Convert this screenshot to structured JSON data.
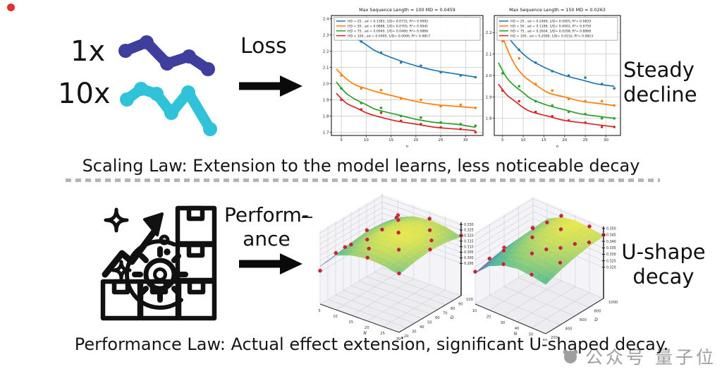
{
  "top": {
    "multiplier_small": "1x",
    "multiplier_large": "10x",
    "arrow_label": "Loss",
    "right_note": "Steady\ndecline",
    "caption": "Scaling Law: Extension to the model learns, less noticeable decay"
  },
  "bottom": {
    "arrow_label": "Perform-\nance",
    "right_note": "U-shape\ndecay",
    "caption": "Performance Law: Actual effect extension, significant U-shaped decay."
  },
  "watermark": {
    "text": "公众号  量子位"
  },
  "colors": {
    "squiggle_1x": "#3f3e9c",
    "squiggle_10x": "#2fc2d8",
    "scatter_red": "#cf2233",
    "series_blue": "#1f77b4",
    "series_orange": "#ff7f0e",
    "series_green": "#2ca02c",
    "series_red": "#d62728"
  },
  "chart_data": [
    {
      "type": "line",
      "title": "Max Sequence Length = 100 MD = 0.0459",
      "xlabel": "n",
      "xlim": [
        3,
        33.5
      ],
      "ylim": [
        1.68,
        2.42
      ],
      "xticks": [
        5,
        10,
        15,
        20,
        25,
        30
      ],
      "yticks": [
        "1.7",
        "1.8",
        "1.9",
        "2.0",
        "2.1",
        "2.2",
        "2.3",
        "2.4"
      ],
      "grid": true,
      "legend_position": "upper full-width inside",
      "series": [
        {
          "label": "HD = 25 , ad = 0.1383, 1/D= 0.0731, R²= 0.9992",
          "color": "#1f77b4",
          "curve": [
            [
              4,
              2.4
            ],
            [
              6,
              2.33
            ],
            [
              8,
              2.28
            ],
            [
              10,
              2.24
            ],
            [
              12,
              2.2
            ],
            [
              16,
              2.15
            ],
            [
              20,
              2.11
            ],
            [
              24,
              2.08
            ],
            [
              28,
              2.06
            ],
            [
              32,
              2.04
            ]
          ],
          "dots": [
            [
              5,
              2.34
            ],
            [
              9,
              2.26
            ],
            [
              13,
              2.19
            ],
            [
              17,
              2.13
            ],
            [
              21,
              2.11
            ],
            [
              25,
              2.07
            ],
            [
              29,
              2.05
            ],
            [
              32,
              2.04
            ]
          ]
        },
        {
          "label": "HD = 50 , ad = 0.0888, 1/D= 0.0705, R²= 0.9941",
          "color": "#ff7f0e",
          "curve": [
            [
              4,
              2.09
            ],
            [
              6,
              2.03
            ],
            [
              8,
              1.99
            ],
            [
              10,
              1.97
            ],
            [
              12,
              1.95
            ],
            [
              16,
              1.92
            ],
            [
              20,
              1.89
            ],
            [
              24,
              1.87
            ],
            [
              28,
              1.86
            ],
            [
              32,
              1.85
            ]
          ],
          "dots": [
            [
              5,
              2.05
            ],
            [
              9,
              1.97
            ],
            [
              13,
              1.96
            ],
            [
              17,
              1.91
            ],
            [
              21,
              1.9
            ],
            [
              25,
              1.86
            ],
            [
              29,
              1.87
            ],
            [
              32,
              1.85
            ]
          ]
        },
        {
          "label": "HD = 75 , ad = 0.0949, 1/D= 0.0480, R²= 0.9866",
          "color": "#2ca02c",
          "curve": [
            [
              4,
              2.01
            ],
            [
              6,
              1.94
            ],
            [
              8,
              1.9
            ],
            [
              10,
              1.87
            ],
            [
              12,
              1.84
            ],
            [
              16,
              1.81
            ],
            [
              20,
              1.78
            ],
            [
              24,
              1.76
            ],
            [
              28,
              1.75
            ],
            [
              32,
              1.73
            ]
          ],
          "dots": [
            [
              5,
              1.97
            ],
            [
              9,
              1.88
            ],
            [
              13,
              1.85
            ],
            [
              17,
              1.8
            ],
            [
              21,
              1.79
            ],
            [
              25,
              1.76
            ],
            [
              29,
              1.75
            ],
            [
              32,
              1.74
            ]
          ]
        },
        {
          "label": "HD = 100 , ad = 0.0495, 1/D= 0.0000, R²= 0.9817",
          "color": "#d62728",
          "curve": [
            [
              4,
              1.94
            ],
            [
              6,
              1.88
            ],
            [
              8,
              1.85
            ],
            [
              10,
              1.82
            ],
            [
              12,
              1.8
            ],
            [
              16,
              1.77
            ],
            [
              20,
              1.75
            ],
            [
              24,
              1.73
            ],
            [
              28,
              1.72
            ],
            [
              32,
              1.71
            ]
          ],
          "dots": [
            [
              5,
              1.9
            ],
            [
              9,
              1.84
            ],
            [
              13,
              1.82
            ],
            [
              17,
              1.77
            ],
            [
              21,
              1.75
            ],
            [
              25,
              1.73
            ],
            [
              29,
              1.72
            ],
            [
              32,
              1.7
            ]
          ]
        }
      ]
    },
    {
      "type": "line",
      "title": "Max Sequence Length = 150 MD = 0.0263",
      "xlabel": "n",
      "xlim": [
        3,
        33.5
      ],
      "ylim": [
        1.72,
        2.28
      ],
      "xticks": [
        5,
        10,
        15,
        20,
        25,
        30
      ],
      "yticks": [
        "1.8",
        "1.9",
        "2.0",
        "2.1",
        "2.2"
      ],
      "grid": true,
      "legend_position": "upper full-width inside",
      "series": [
        {
          "label": "HD = 25 , ad = 0.2469, 1/D= 0.0005, R²= 0.9829",
          "color": "#1f77b4",
          "curve": [
            [
              4,
              2.26
            ],
            [
              6,
              2.19
            ],
            [
              8,
              2.14
            ],
            [
              10,
              2.1
            ],
            [
              12,
              2.07
            ],
            [
              16,
              2.03
            ],
            [
              20,
              2.0
            ],
            [
              24,
              1.98
            ],
            [
              28,
              1.96
            ],
            [
              32,
              1.95
            ]
          ],
          "dots": [
            [
              5,
              2.21
            ],
            [
              9,
              2.12
            ],
            [
              13,
              2.06
            ],
            [
              17,
              2.02
            ],
            [
              21,
              2.0
            ],
            [
              25,
              1.99
            ],
            [
              29,
              1.96
            ],
            [
              32,
              1.94
            ]
          ]
        },
        {
          "label": "HD = 50 , ad = 0.1189, 1/D= 0.0002, R²= 0.9759",
          "color": "#ff7f0e",
          "curve": [
            [
              4,
              2.24
            ],
            [
              6,
              2.13
            ],
            [
              8,
              2.05
            ],
            [
              10,
              2.0
            ],
            [
              12,
              1.97
            ],
            [
              16,
              1.92
            ],
            [
              20,
              1.9
            ],
            [
              24,
              1.88
            ],
            [
              28,
              1.87
            ],
            [
              32,
              1.86
            ]
          ],
          "dots": [
            [
              5,
              2.16
            ],
            [
              9,
              2.08
            ],
            [
              13,
              1.96
            ],
            [
              17,
              1.93
            ],
            [
              21,
              1.89
            ],
            [
              25,
              1.88
            ],
            [
              29,
              1.88
            ],
            [
              32,
              1.86
            ]
          ]
        },
        {
          "label": "HD = 75 , ad = 0.2604, 1/D= 0.0298, R²= 0.8868",
          "color": "#2ca02c",
          "curve": [
            [
              4,
              2.06
            ],
            [
              6,
              1.99
            ],
            [
              8,
              1.95
            ],
            [
              10,
              1.92
            ],
            [
              12,
              1.89
            ],
            [
              16,
              1.86
            ],
            [
              20,
              1.84
            ],
            [
              24,
              1.82
            ],
            [
              28,
              1.81
            ],
            [
              32,
              1.8
            ]
          ],
          "dots": [
            [
              5,
              2.01
            ],
            [
              9,
              1.95
            ],
            [
              13,
              1.88
            ],
            [
              17,
              1.86
            ],
            [
              21,
              1.83
            ],
            [
              25,
              1.82
            ],
            [
              29,
              1.8
            ],
            [
              32,
              1.8
            ]
          ]
        },
        {
          "label": "HD = 100 , ad = 0.2006, 1/D= 0.0152, R²= 0.9823",
          "color": "#d62728",
          "curve": [
            [
              4,
              1.96
            ],
            [
              6,
              1.91
            ],
            [
              8,
              1.88
            ],
            [
              10,
              1.85
            ],
            [
              12,
              1.83
            ],
            [
              16,
              1.81
            ],
            [
              20,
              1.79
            ],
            [
              24,
              1.78
            ],
            [
              28,
              1.77
            ],
            [
              32,
              1.76
            ]
          ],
          "dots": [
            [
              5,
              1.93
            ],
            [
              9,
              1.88
            ],
            [
              13,
              1.83
            ],
            [
              17,
              1.81
            ],
            [
              21,
              1.79
            ],
            [
              25,
              1.78
            ],
            [
              29,
              1.76
            ],
            [
              32,
              1.76
            ]
          ]
        }
      ]
    },
    {
      "type": "surface3d",
      "xlabel": "N",
      "ylabel": "D",
      "xticks": [
        5,
        10,
        15,
        20,
        25,
        30
      ],
      "yticks": [
        20,
        30,
        40,
        50,
        60,
        70,
        80,
        90,
        100
      ],
      "zticks": [
        "0.295",
        "0.300",
        "0.305",
        "0.310",
        "0.315",
        "0.320",
        "0.325",
        "0.330"
      ],
      "xrange": [
        5,
        30
      ],
      "yrange": [
        20,
        100
      ],
      "zrange": [
        0.266,
        0.332
      ],
      "grid_x": [
        5,
        10,
        15,
        20,
        25,
        30
      ],
      "grid_y": [
        20,
        40,
        60,
        80,
        100
      ],
      "grid_z": [
        [
          0.3,
          0.315,
          0.32,
          0.322,
          0.321,
          0.318
        ],
        [
          0.302,
          0.318,
          0.324,
          0.326,
          0.325,
          0.321
        ],
        [
          0.303,
          0.32,
          0.326,
          0.328,
          0.327,
          0.323
        ],
        [
          0.302,
          0.319,
          0.325,
          0.327,
          0.326,
          0.322
        ],
        [
          0.3,
          0.316,
          0.322,
          0.324,
          0.323,
          0.319
        ]
      ],
      "scatter_color": "#cf2233",
      "scatter": [
        [
          5,
          20,
          0.296
        ],
        [
          5,
          60,
          0.303
        ],
        [
          5,
          100,
          0.3
        ],
        [
          8,
          40,
          0.312
        ],
        [
          10,
          20,
          0.317
        ],
        [
          10,
          60,
          0.321
        ],
        [
          10,
          100,
          0.318
        ],
        [
          12,
          90,
          0.322
        ],
        [
          15,
          40,
          0.326
        ],
        [
          15,
          80,
          0.327
        ],
        [
          18,
          30,
          0.325
        ],
        [
          20,
          20,
          0.323
        ],
        [
          20,
          60,
          0.329
        ],
        [
          20,
          100,
          0.325
        ],
        [
          25,
          40,
          0.327
        ],
        [
          25,
          80,
          0.328
        ],
        [
          28,
          70,
          0.326
        ],
        [
          30,
          20,
          0.319
        ],
        [
          30,
          60,
          0.324
        ],
        [
          30,
          100,
          0.32
        ]
      ]
    },
    {
      "type": "surface3d",
      "xlabel": "N",
      "ylabel": "D",
      "xticks": [
        10,
        20,
        30,
        40,
        50,
        60
      ],
      "yticks": [
        200,
        400,
        600,
        800,
        1000
      ],
      "zticks": [
        "0.320",
        "0.325",
        "0.330",
        "0.335",
        "0.340",
        "0.345",
        "0.350"
      ],
      "xrange": [
        10,
        60
      ],
      "yrange": [
        200,
        1000
      ],
      "zrange": [
        0.296,
        0.3515
      ],
      "grid_x": [
        10,
        20,
        30,
        40,
        50,
        60
      ],
      "grid_y": [
        200,
        400,
        600,
        800,
        1000
      ],
      "grid_z": [
        [
          0.32,
          0.33,
          0.335,
          0.337,
          0.336,
          0.334
        ],
        [
          0.323,
          0.334,
          0.339,
          0.341,
          0.34,
          0.338
        ],
        [
          0.325,
          0.337,
          0.342,
          0.344,
          0.343,
          0.341
        ],
        [
          0.326,
          0.338,
          0.344,
          0.346,
          0.345,
          0.343
        ],
        [
          0.326,
          0.339,
          0.345,
          0.347,
          0.346,
          0.344
        ]
      ],
      "scatter_color": "#cf2233",
      "scatter": [
        [
          10,
          200,
          0.321
        ],
        [
          10,
          600,
          0.326
        ],
        [
          10,
          1000,
          0.327
        ],
        [
          15,
          300,
          0.33
        ],
        [
          20,
          400,
          0.335
        ],
        [
          20,
          800,
          0.339
        ],
        [
          25,
          900,
          0.342
        ],
        [
          30,
          200,
          0.336
        ],
        [
          30,
          600,
          0.343
        ],
        [
          30,
          1000,
          0.346
        ],
        [
          40,
          400,
          0.342
        ],
        [
          40,
          800,
          0.347
        ],
        [
          45,
          500,
          0.344
        ],
        [
          50,
          200,
          0.337
        ],
        [
          50,
          600,
          0.344
        ],
        [
          50,
          1000,
          0.347
        ],
        [
          55,
          700,
          0.346
        ],
        [
          60,
          400,
          0.344
        ],
        [
          60,
          800,
          0.346
        ],
        [
          60,
          1000,
          0.345
        ]
      ]
    }
  ]
}
